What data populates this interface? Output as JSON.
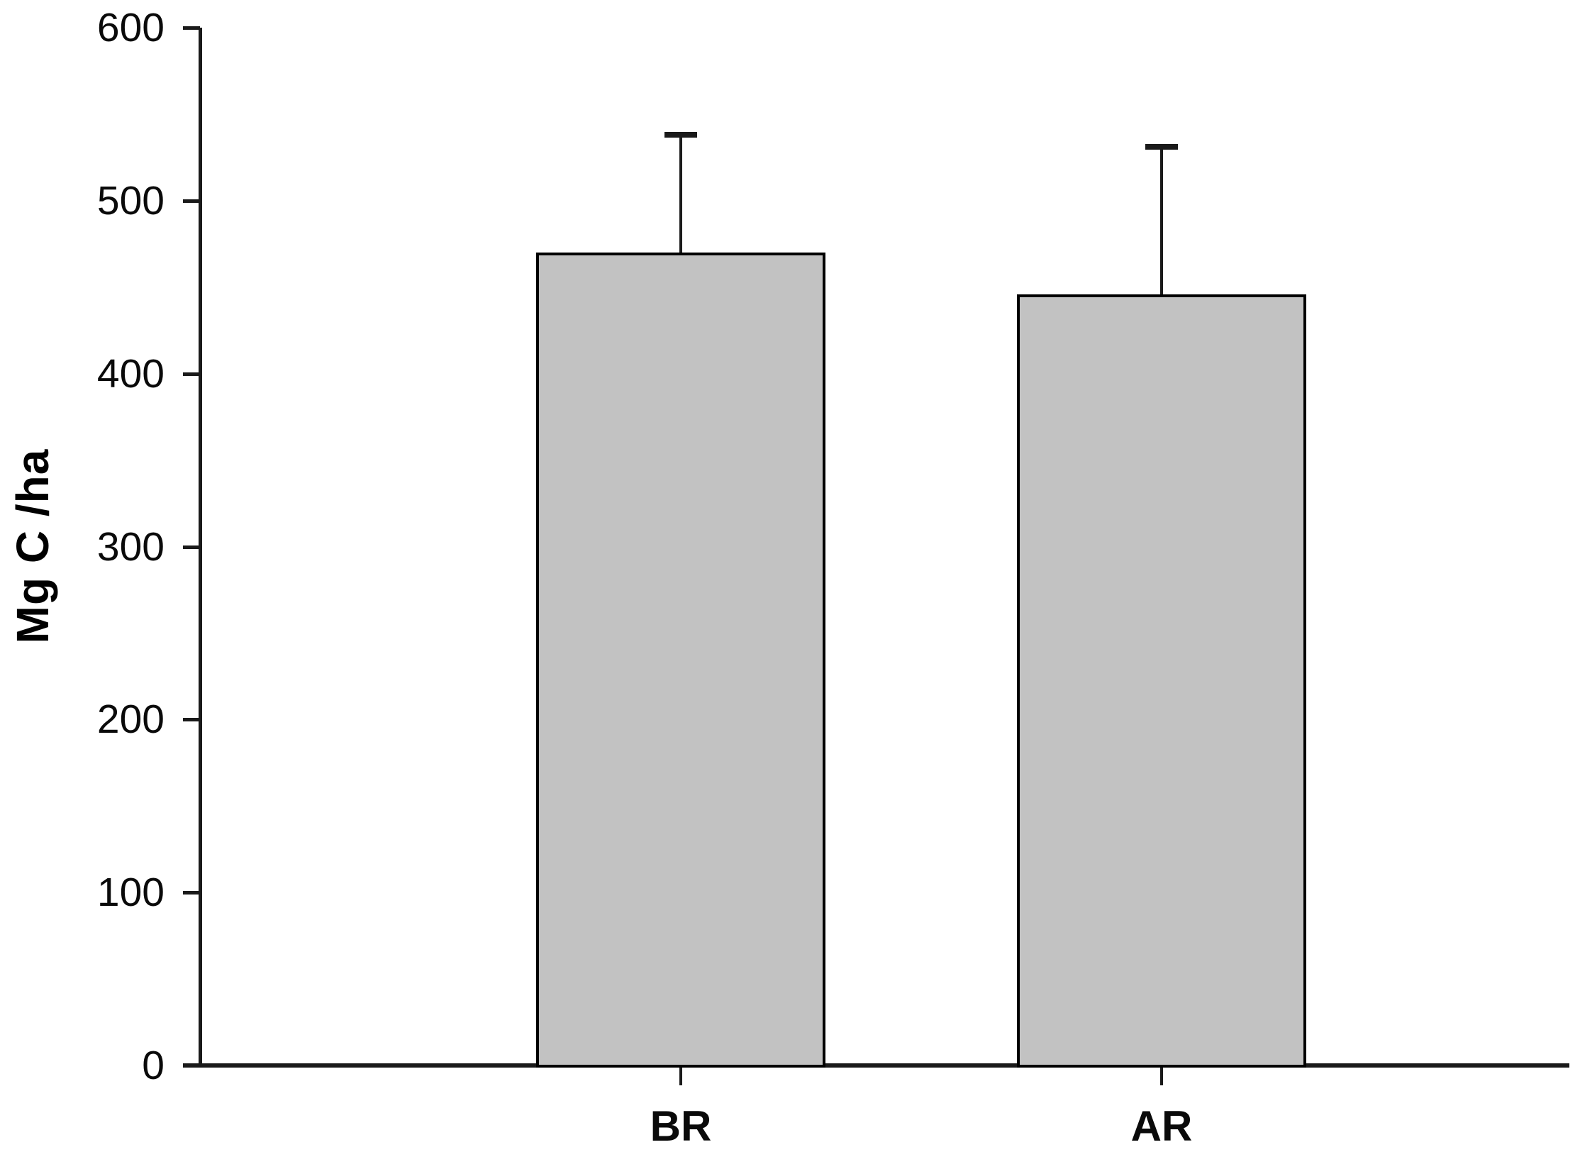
{
  "figure": {
    "background": "#ffffff"
  },
  "chart_data": {
    "type": "bar",
    "categories": [
      "BR",
      "AR"
    ],
    "values": [
      470,
      446
    ],
    "errors_plus": [
      68,
      85
    ],
    "ylabel": "Mg C /ha",
    "ylim": [
      0,
      600
    ],
    "yticks": [
      "0",
      "100",
      "200",
      "300",
      "400",
      "500",
      "600"
    ],
    "grid": false,
    "legend_position": "none",
    "bar_fill_color": "#c2c2c2",
    "bar_border_color": "#000000",
    "axis_color": "#1a1a1a",
    "text_color": "#0a0a0a"
  }
}
